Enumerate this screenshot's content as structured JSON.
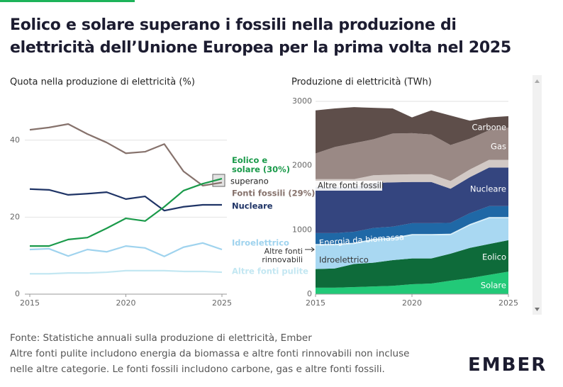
{
  "header": {
    "title": "Eolico e solare superano i fossili nella produzione di elettricità dell’Unione Europea per la prima volta nel 2025"
  },
  "chart_data": [
    {
      "type": "line",
      "title": "Quota nella produzione di elettricità (%)",
      "x": [
        2015,
        2016,
        2017,
        2018,
        2019,
        2020,
        2021,
        2022,
        2023,
        2024,
        2025
      ],
      "xlim": [
        2015,
        2025
      ],
      "xticks": [
        2015,
        2020,
        2025
      ],
      "ylim": [
        0,
        50
      ],
      "yticks": [
        0,
        20,
        40
      ],
      "grid": true,
      "annotation": "superano",
      "series": [
        {
          "name": "Fonti fossili (29%)",
          "color": "#86726c",
          "values": [
            42.7,
            43.3,
            44.2,
            41.6,
            39.4,
            36.6,
            37.0,
            39.0,
            31.9,
            28.2,
            29
          ]
        },
        {
          "name": "Nucleare",
          "color": "#1f3466",
          "values": [
            27.3,
            27.1,
            25.8,
            26.1,
            26.5,
            24.7,
            25.4,
            21.7,
            22.7,
            23.2,
            23.2
          ]
        },
        {
          "name": "Eolico e solare (30%)",
          "color": "#1a9a4a",
          "values": [
            12.5,
            12.5,
            14.2,
            14.7,
            17.1,
            19.7,
            19.0,
            22.7,
            26.9,
            28.7,
            30
          ]
        },
        {
          "name": "Idroelettrico",
          "color": "#9fd3ee",
          "values": [
            11.6,
            11.8,
            9.9,
            11.6,
            11.0,
            12.5,
            12.0,
            9.8,
            12.2,
            13.3,
            11.6
          ]
        },
        {
          "name": "Altre fonti pulite",
          "color": "#c3e7f2",
          "values": [
            5.3,
            5.3,
            5.5,
            5.5,
            5.7,
            6.1,
            6.1,
            6.1,
            5.9,
            5.9,
            5.7
          ]
        }
      ]
    },
    {
      "type": "area",
      "stacked": true,
      "title": "Produzione di elettricità (TWh)",
      "x": [
        2015,
        2016,
        2017,
        2018,
        2019,
        2020,
        2021,
        2022,
        2023,
        2024,
        2025
      ],
      "xlim": [
        2015,
        2025
      ],
      "xticks": [
        2015,
        2020,
        2025
      ],
      "ylim": [
        0,
        3000
      ],
      "yticks": [
        0,
        1000,
        2000,
        3000
      ],
      "grid": true,
      "series": [
        {
          "name": "Solare",
          "color": "#22c978",
          "values": [
            100,
            100,
            110,
            120,
            130,
            155,
            165,
            210,
            250,
            300,
            350
          ]
        },
        {
          "name": "Eolico",
          "color": "#0e6b3a",
          "values": [
            290,
            300,
            360,
            370,
            400,
            400,
            390,
            420,
            470,
            480,
            490
          ]
        },
        {
          "name": "Idroelettrico",
          "color": "#a9d8f2",
          "values": [
            370,
            360,
            310,
            350,
            330,
            360,
            360,
            290,
            350,
            400,
            340
          ]
        },
        {
          "name": "Altre fonti rinnovabili",
          "color": "#d9eff8",
          "values": [
            20,
            20,
            20,
            20,
            20,
            20,
            20,
            20,
            20,
            20,
            20
          ]
        },
        {
          "name": "Energia da biomassa",
          "color": "#1f68a6",
          "values": [
            170,
            170,
            170,
            170,
            170,
            170,
            170,
            170,
            170,
            170,
            170
          ]
        },
        {
          "name": "Nucleare",
          "color": "#34457f",
          "values": [
            720,
            720,
            700,
            700,
            690,
            640,
            640,
            530,
            560,
            600,
            600
          ]
        },
        {
          "name": "Altre fonti fossili",
          "color": "#d2c9c5",
          "values": [
            120,
            120,
            120,
            120,
            120,
            120,
            120,
            120,
            120,
            120,
            120
          ]
        },
        {
          "name": "Gas",
          "color": "#9a8985",
          "values": [
            400,
            500,
            560,
            560,
            640,
            640,
            620,
            560,
            480,
            460,
            500
          ]
        },
        {
          "name": "Carbone",
          "color": "#5e4e4a",
          "values": [
            670,
            600,
            560,
            490,
            390,
            245,
            375,
            460,
            280,
            200,
            180
          ]
        }
      ]
    }
  ],
  "footer": {
    "source": "Fonte: Statistiche annuali sulla produzione di elettricità, Ember",
    "note": "Altre fonti pulite includono energia da biomassa e altre fonti rinnovabili non incluse nelle altre categorie. Le fonti fossili includono carbone, gas e altre fonti fossili.",
    "logo": "EMBER"
  }
}
